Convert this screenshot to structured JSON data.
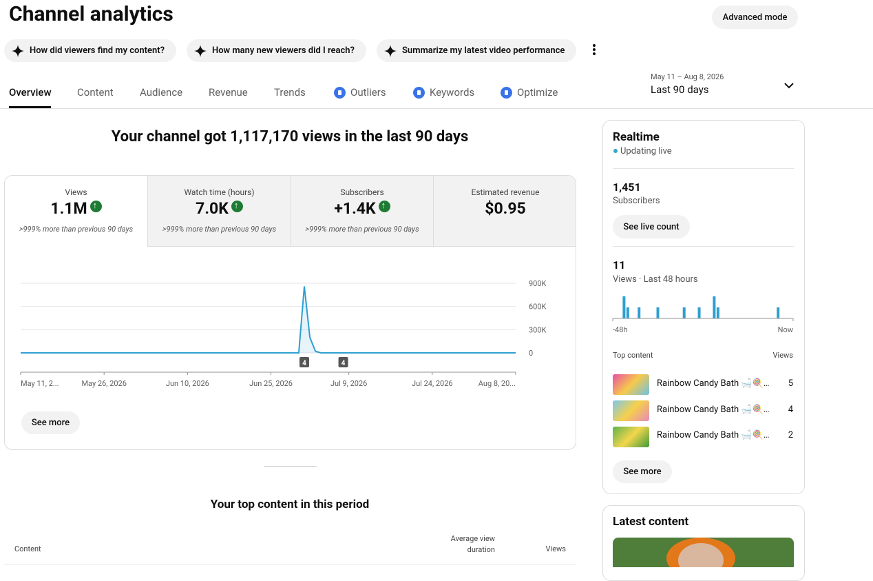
{
  "header": {
    "title": "Channel analytics",
    "advanced_button": "Advanced mode"
  },
  "prompts": [
    "How did viewers find my content?",
    "How many new viewers did I reach?",
    "Summarize my latest video performance"
  ],
  "tabs": [
    "Overview",
    "Content",
    "Audience",
    "Revenue",
    "Trends",
    "Outliers",
    "Keywords",
    "Optimize"
  ],
  "date_range": {
    "dates": "May 11 – Aug 8, 2026",
    "label": "Last 90 days"
  },
  "headline": "Your channel got 1,117,170 views in the last 90 days",
  "metrics": [
    {
      "label": "Views",
      "value": "1.1M",
      "note": ">999% more than previous 90 days"
    },
    {
      "label": "Watch time (hours)",
      "value": "7.0K",
      "note": ">999% more than previous 90 days"
    },
    {
      "label": "Subscribers",
      "value": "+1.4K",
      "note": ">999% more than previous 90 days"
    },
    {
      "label": "Estimated revenue",
      "value": "$0.95"
    }
  ],
  "see_more": "See more",
  "top_content": {
    "title": "Your top content in this period",
    "columns": [
      "Content",
      "Average view duration",
      "Views"
    ]
  },
  "realtime": {
    "title": "Realtime",
    "status": "Updating live",
    "subscribers_value": "1,451",
    "subscribers_label": "Subscribers",
    "live_count_button": "See live count",
    "views_value": "11",
    "views_label": "Views · Last 48 hours",
    "top_label": "Top content",
    "views_column": "Views",
    "items": [
      {
        "title": "Rainbow Candy Bath 🛁🍭…",
        "views": "5"
      },
      {
        "title": "Rainbow Candy Bath 🛁🍭…",
        "views": "4"
      },
      {
        "title": "Rainbow Candy Bath 🛁🍭…",
        "views": "2"
      }
    ],
    "see_more": "See more"
  },
  "latest": {
    "title": "Latest content"
  },
  "chart_data": [
    {
      "type": "line",
      "color": "#2e9fd0",
      "x": [
        "2026-05-11",
        "2026-06-30",
        "2026-07-01",
        "2026-07-02",
        "2026-07-03",
        "2026-07-04",
        "2026-08-08"
      ],
      "values": [
        0,
        0,
        860000,
        200000,
        20000,
        0,
        0
      ],
      "xlim": [
        "2026-05-11",
        "2026-08-08"
      ],
      "xticks": [
        {
          "value": "2026-05-11",
          "label": "May 11, 2..."
        },
        {
          "value": "2026-05-26",
          "label": "May 26, 2026"
        },
        {
          "value": "2026-06-10",
          "label": "Jun 10, 2026"
        },
        {
          "value": "2026-06-25",
          "label": "Jun 25, 2026"
        },
        {
          "value": "2026-07-09",
          "label": "Jul 9, 2026"
        },
        {
          "value": "2026-07-24",
          "label": "Jul 24, 2026"
        },
        {
          "value": "2026-08-08",
          "label": "Aug 8, 20..."
        }
      ],
      "ylim": [
        0,
        900000
      ],
      "yticks": [
        {
          "value": 900000,
          "label": "900K"
        },
        {
          "value": 600000,
          "label": "600K"
        },
        {
          "value": 300000,
          "label": "300K"
        },
        0
      ],
      "grid": true,
      "annotations": [
        {
          "x": "2026-07-01",
          "text": "4"
        },
        {
          "x": "2026-07-08",
          "text": "4"
        }
      ]
    },
    {
      "type": "bar",
      "color": "#2e9fd0",
      "x": [
        -45,
        -44,
        -41,
        -36,
        -29,
        -25,
        -21,
        -20,
        -4
      ],
      "values": [
        2,
        1,
        1,
        1,
        1,
        1,
        2,
        1,
        1
      ],
      "xlim": [
        -48,
        0
      ],
      "ylim": [
        0,
        2
      ],
      "xticks": [
        {
          "value": -48,
          "label": "-48h"
        },
        {
          "value": 0,
          "label": "Now"
        }
      ]
    }
  ]
}
